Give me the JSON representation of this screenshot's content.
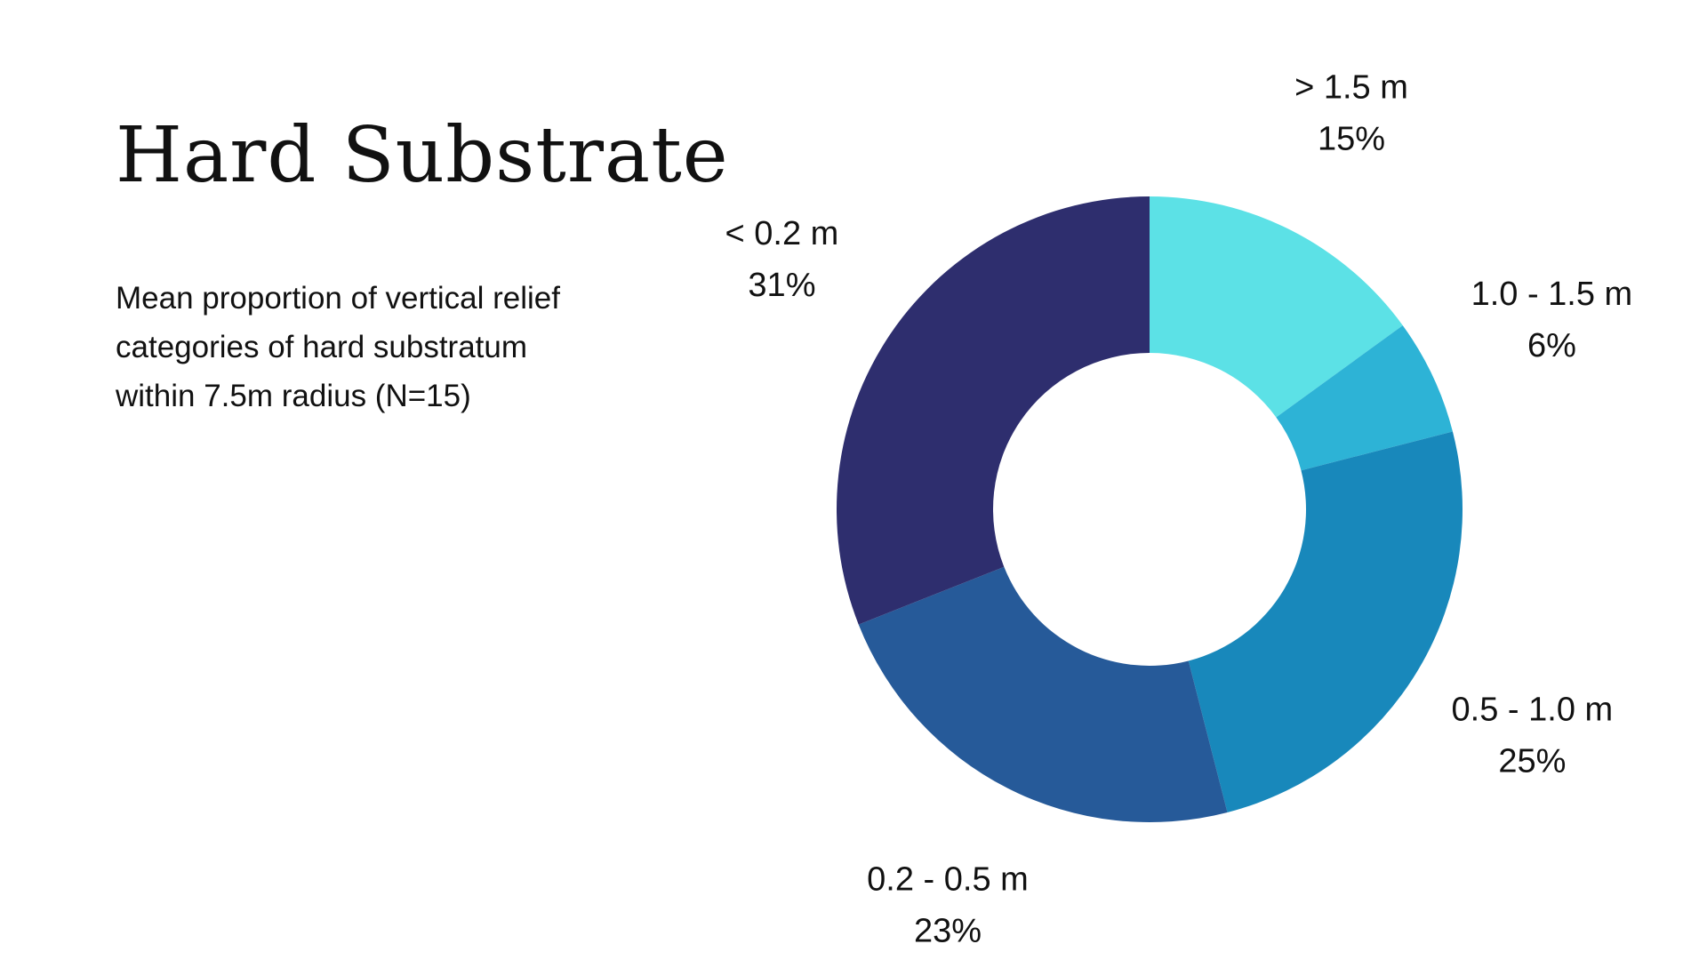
{
  "slide": {
    "title": "Hard Substrate",
    "subtitle": "Mean proportion of vertical relief categories of hard substratum within 7.5m radius (N=15)"
  },
  "chart_data": {
    "type": "pie",
    "variant": "donut",
    "categories": [
      "> 1.5 m",
      "1.0 - 1.5 m",
      "0.5 - 1.0 m",
      "0.2 - 0.5 m",
      "< 0.2 m"
    ],
    "values": [
      15,
      6,
      25,
      23,
      31
    ],
    "value_labels": [
      "15%",
      "6%",
      "25%",
      "23%",
      "31%"
    ],
    "colors": [
      "#5CE1E6",
      "#2DB3D6",
      "#1888BB",
      "#265A99",
      "#2E2E6E"
    ],
    "start": "12 o'clock, clockwise",
    "legend": "none"
  }
}
